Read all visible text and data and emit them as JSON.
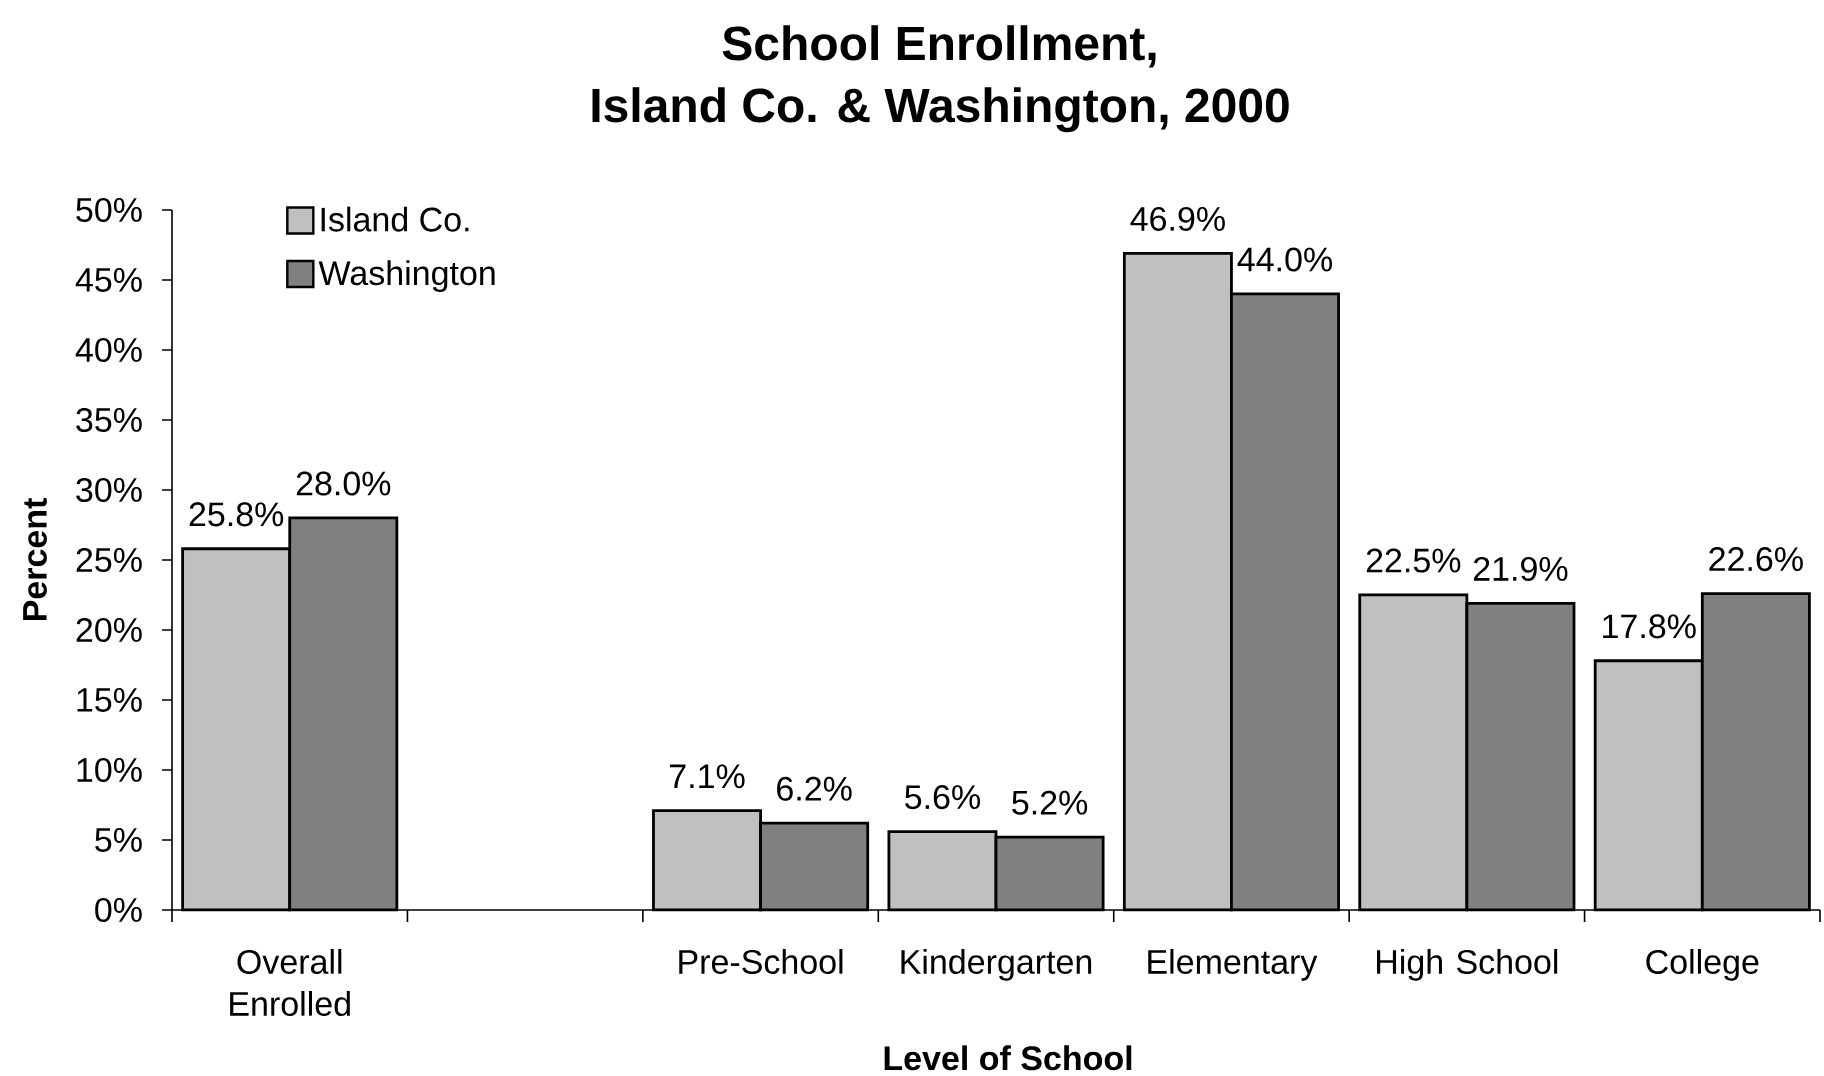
{
  "chart_data": {
    "type": "bar",
    "title": "School Enrollment, Island Co. & Washington, 2000",
    "xlabel": "Level of School",
    "ylabel": "Percent",
    "categories": [
      "Overall Enrolled",
      null,
      "Pre-School",
      "Kindergarten",
      "Elementary",
      "High School",
      "College"
    ],
    "series": [
      {
        "name": "Island Co.",
        "color": "#c0c0c0",
        "values": [
          25.8,
          null,
          7.1,
          5.6,
          46.9,
          22.5,
          17.8
        ],
        "value_labels": [
          "25.8%",
          null,
          "7.1%",
          "5.6%",
          "46.9%",
          "22.5%",
          "17.8%"
        ]
      },
      {
        "name": "Washington",
        "color": "#808080",
        "values": [
          28.0,
          null,
          6.2,
          5.2,
          44.0,
          21.9,
          22.6
        ],
        "value_labels": [
          "28.0%",
          null,
          "6.2%",
          "5.2%",
          "44.0%",
          "21.9%",
          "22.6%"
        ]
      }
    ],
    "ylim": [
      0,
      50
    ],
    "yticks": [
      {
        "value": 0,
        "label": "0%"
      },
      {
        "value": 5,
        "label": "5%"
      },
      {
        "value": 10,
        "label": "10%"
      },
      {
        "value": 15,
        "label": "15%"
      },
      {
        "value": 20,
        "label": "20%"
      },
      {
        "value": 25,
        "label": "25%"
      },
      {
        "value": 30,
        "label": "30%"
      },
      {
        "value": 35,
        "label": "35%"
      },
      {
        "value": 40,
        "label": "40%"
      },
      {
        "value": 45,
        "label": "45%"
      },
      {
        "value": 50,
        "label": "50%"
      }
    ],
    "legend": "top left"
  }
}
